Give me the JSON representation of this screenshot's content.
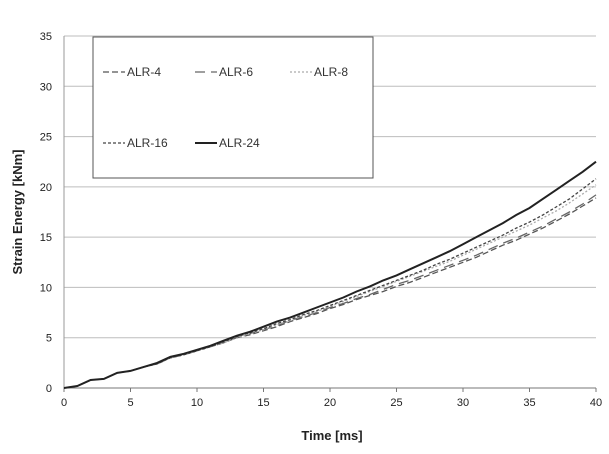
{
  "chart_data": {
    "type": "line",
    "xlabel": "Time [ms]",
    "ylabel": "Strain Energy [kNm]",
    "xlim": [
      0,
      40
    ],
    "ylim": [
      0,
      35
    ],
    "xticks": [
      0,
      5,
      10,
      15,
      20,
      25,
      30,
      35,
      40
    ],
    "yticks": [
      0,
      5,
      10,
      15,
      20,
      25,
      30,
      35
    ],
    "grid": "horizontal",
    "legend_position": "top-left",
    "series": [
      {
        "name": "ALR-4",
        "style": "dashed",
        "color": "#555555",
        "x": [
          0,
          1,
          2,
          3,
          4,
          5,
          6,
          7,
          8,
          9,
          10,
          11,
          12,
          13,
          14,
          15,
          16,
          17,
          18,
          19,
          20,
          21,
          22,
          23,
          24,
          25,
          26,
          27,
          28,
          29,
          30,
          31,
          32,
          33,
          34,
          35,
          36,
          37,
          38,
          39,
          40
        ],
        "y": [
          0,
          0.2,
          0.8,
          0.9,
          1.5,
          1.7,
          2.1,
          2.4,
          3.0,
          3.3,
          3.7,
          4.1,
          4.5,
          5.0,
          5.3,
          5.7,
          6.1,
          6.6,
          7.0,
          7.4,
          7.9,
          8.3,
          8.8,
          9.2,
          9.6,
          10.1,
          10.5,
          11.0,
          11.5,
          12.0,
          12.5,
          13.0,
          13.6,
          14.2,
          14.7,
          15.3,
          15.9,
          16.6,
          17.3,
          18.1,
          18.9
        ]
      },
      {
        "name": "ALR-6",
        "style": "long-dash",
        "color": "#666666",
        "x": [
          0,
          1,
          2,
          3,
          4,
          5,
          6,
          7,
          8,
          9,
          10,
          11,
          12,
          13,
          14,
          15,
          16,
          17,
          18,
          19,
          20,
          21,
          22,
          23,
          24,
          25,
          26,
          27,
          28,
          29,
          30,
          31,
          32,
          33,
          34,
          35,
          36,
          37,
          38,
          39,
          40
        ],
        "y": [
          0,
          0.2,
          0.8,
          0.9,
          1.5,
          1.7,
          2.1,
          2.4,
          3.0,
          3.3,
          3.7,
          4.1,
          4.5,
          5.0,
          5.4,
          5.8,
          6.2,
          6.7,
          7.1,
          7.5,
          8.0,
          8.4,
          8.9,
          9.3,
          9.8,
          10.3,
          10.7,
          11.2,
          11.7,
          12.2,
          12.7,
          13.2,
          13.8,
          14.4,
          14.9,
          15.5,
          16.1,
          16.8,
          17.5,
          18.3,
          19.2
        ]
      },
      {
        "name": "ALR-8",
        "style": "dotted-light",
        "color": "#aaaaaa",
        "x": [
          0,
          1,
          2,
          3,
          4,
          5,
          6,
          7,
          8,
          9,
          10,
          11,
          12,
          13,
          14,
          15,
          16,
          17,
          18,
          19,
          20,
          21,
          22,
          23,
          24,
          25,
          26,
          27,
          28,
          29,
          30,
          31,
          32,
          33,
          34,
          35,
          36,
          37,
          38,
          39,
          40
        ],
        "y": [
          0,
          0.2,
          0.8,
          0.9,
          1.5,
          1.7,
          2.1,
          2.4,
          3.0,
          3.3,
          3.7,
          4.1,
          4.5,
          5.0,
          5.4,
          5.8,
          6.3,
          6.7,
          7.2,
          7.6,
          8.1,
          8.6,
          9.1,
          9.6,
          10.1,
          10.6,
          11.1,
          11.6,
          12.1,
          12.6,
          13.2,
          13.8,
          14.4,
          15.0,
          15.6,
          16.2,
          16.9,
          17.6,
          18.4,
          19.3,
          20.2
        ]
      },
      {
        "name": "ALR-16",
        "style": "dotted",
        "color": "#444444",
        "x": [
          0,
          1,
          2,
          3,
          4,
          5,
          6,
          7,
          8,
          9,
          10,
          11,
          12,
          13,
          14,
          15,
          16,
          17,
          18,
          19,
          20,
          21,
          22,
          23,
          24,
          25,
          26,
          27,
          28,
          29,
          30,
          31,
          32,
          33,
          34,
          35,
          36,
          37,
          38,
          39,
          40
        ],
        "y": [
          0,
          0.2,
          0.8,
          0.9,
          1.5,
          1.7,
          2.1,
          2.4,
          3.0,
          3.3,
          3.7,
          4.1,
          4.6,
          5.1,
          5.5,
          5.9,
          6.4,
          6.8,
          7.3,
          7.7,
          8.2,
          8.7,
          9.2,
          9.7,
          10.2,
          10.7,
          11.2,
          11.7,
          12.3,
          12.8,
          13.4,
          14.0,
          14.6,
          15.2,
          15.9,
          16.5,
          17.2,
          18.0,
          18.8,
          19.8,
          20.8
        ]
      },
      {
        "name": "ALR-24",
        "style": "solid",
        "color": "#222222",
        "x": [
          0,
          1,
          2,
          3,
          4,
          5,
          6,
          7,
          8,
          9,
          10,
          11,
          12,
          13,
          14,
          15,
          16,
          17,
          18,
          19,
          20,
          21,
          22,
          23,
          24,
          25,
          26,
          27,
          28,
          29,
          30,
          31,
          32,
          33,
          34,
          35,
          36,
          37,
          38,
          39,
          40
        ],
        "y": [
          0,
          0.2,
          0.8,
          0.9,
          1.5,
          1.7,
          2.1,
          2.5,
          3.1,
          3.4,
          3.8,
          4.2,
          4.7,
          5.2,
          5.6,
          6.1,
          6.6,
          7.0,
          7.5,
          8.0,
          8.5,
          9.0,
          9.6,
          10.1,
          10.7,
          11.2,
          11.8,
          12.4,
          13.0,
          13.6,
          14.3,
          15.0,
          15.7,
          16.4,
          17.2,
          17.9,
          18.8,
          19.7,
          20.6,
          21.5,
          22.5
        ]
      }
    ]
  }
}
